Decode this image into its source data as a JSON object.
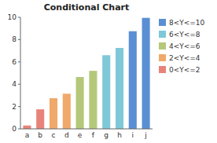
{
  "chart_data": {
    "type": "bar",
    "title": "Conditional Chart",
    "categories": [
      "a",
      "b",
      "c",
      "d",
      "e",
      "f",
      "g",
      "h",
      "i",
      "j"
    ],
    "values": [
      0.3,
      1.75,
      2.75,
      3.15,
      4.65,
      5.2,
      6.6,
      7.25,
      8.75,
      9.95
    ],
    "colors": [
      "#e8837a",
      "#e8837a",
      "#f0a96a",
      "#f0a96a",
      "#b5c87a",
      "#b5c87a",
      "#7ec8d8",
      "#7ec8d8",
      "#5b8fd4",
      "#5b8fd4"
    ],
    "ylim": [
      0,
      10
    ],
    "yticks": [
      0,
      2,
      4,
      6,
      8,
      10
    ],
    "legend": "right",
    "legend_items": [
      {
        "label": "8<Y<=10",
        "color": "#5b8fd4"
      },
      {
        "label": "6<Y<=8",
        "color": "#7ec8d8"
      },
      {
        "label": "4<Y<=6",
        "color": "#b5c87a"
      },
      {
        "label": "2<Y<=4",
        "color": "#f0a96a"
      },
      {
        "label": "0<Y<=2",
        "color": "#e8837a"
      }
    ]
  }
}
